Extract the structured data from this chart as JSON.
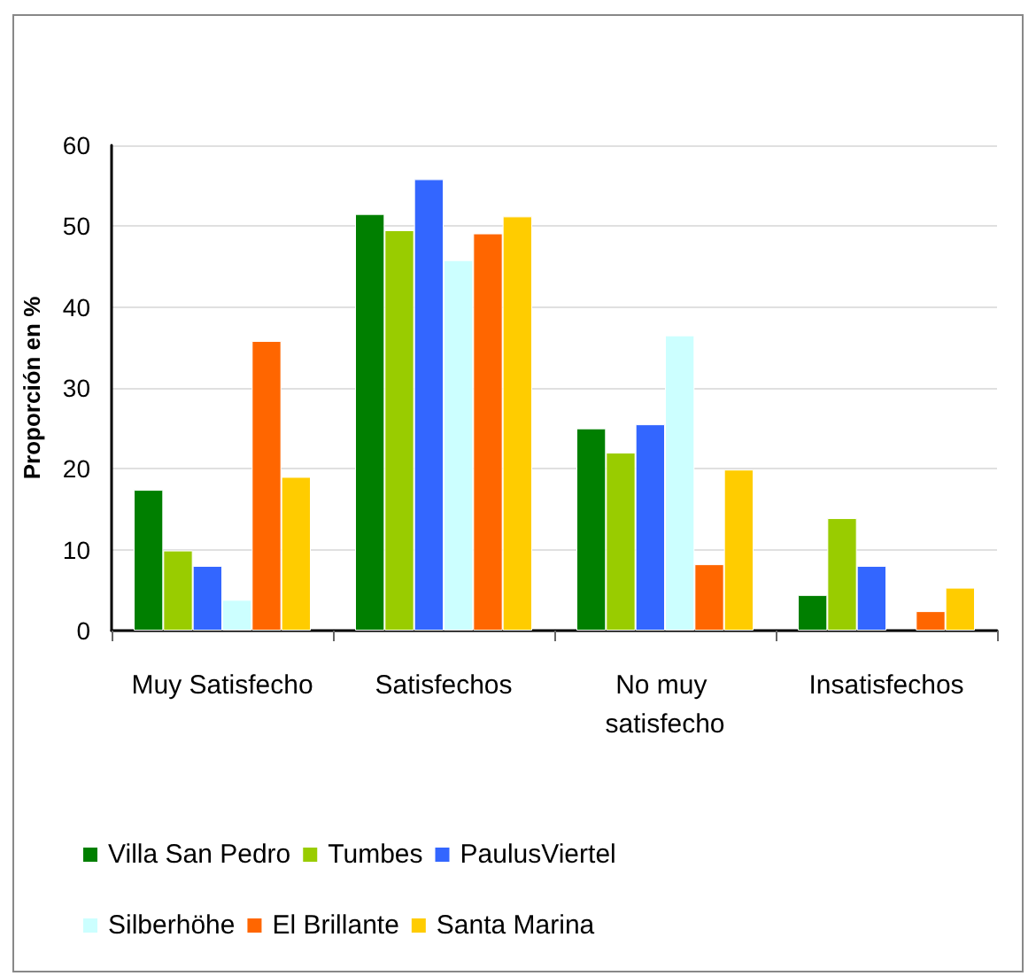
{
  "chart_data": {
    "type": "bar",
    "ylabel": "Proporción en %",
    "categories": [
      "Muy Satisfecho",
      "Satisfechos",
      "No muy satisfecho",
      "Insatisfechos"
    ],
    "series": [
      {
        "name": "Villa San Pedro",
        "color": "#007f00",
        "values": [
          17.4,
          51.5,
          25.0,
          4.4
        ]
      },
      {
        "name": "Tumbes",
        "color": "#99cc00",
        "values": [
          9.9,
          49.5,
          22.0,
          13.9
        ]
      },
      {
        "name": "PaulusViertel",
        "color": "#3366ff",
        "values": [
          8.0,
          55.8,
          25.5,
          8.0
        ]
      },
      {
        "name": "Silberhöhe",
        "color": "#ccffff",
        "values": [
          3.8,
          45.8,
          36.5,
          null
        ]
      },
      {
        "name": "El Brillante",
        "color": "#ff6600",
        "values": [
          35.8,
          49.1,
          8.2,
          2.4
        ]
      },
      {
        "name": "Santa Marina",
        "color": "#ffcc00",
        "values": [
          19.0,
          51.2,
          19.9,
          5.3
        ]
      }
    ],
    "ylim": [
      0,
      60
    ],
    "yticks": [
      0,
      10,
      20,
      30,
      40,
      50,
      60
    ],
    "grid": "y",
    "legend": "bottom"
  }
}
